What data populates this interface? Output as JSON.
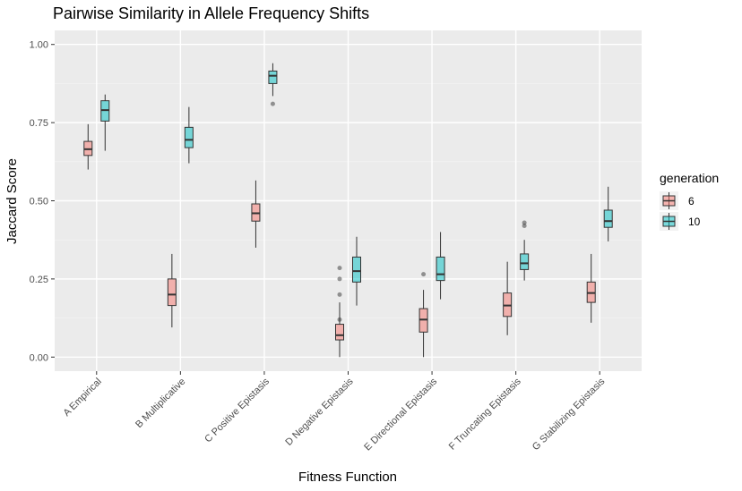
{
  "chart_data": {
    "type": "boxplot",
    "title": "Pairwise Similarity in Allele Frequency Shifts",
    "xlabel": "Fitness Function",
    "ylabel": "Jaccard Score",
    "ylim": [
      -0.045,
      1.045
    ],
    "yticks": [
      "0.00",
      "0.25",
      "0.50",
      "0.75",
      "1.00"
    ],
    "ytick_values": [
      0,
      0.25,
      0.5,
      0.75,
      1.0
    ],
    "grid": true,
    "legend_position": "right",
    "legend_title": "generation",
    "categories": [
      "A Empirical",
      "B Multiplicative",
      "C Positive Epistasis",
      "D Negative Epistasis",
      "E Directional Epistasis",
      "F Truncating Epistasis",
      "G Stabilizing Epistasis"
    ],
    "series": [
      {
        "name": "6",
        "color": "#F8766D",
        "boxes": [
          {
            "min": 0.6,
            "q1": 0.645,
            "median": 0.665,
            "q3": 0.69,
            "max": 0.745,
            "outliers": []
          },
          {
            "min": 0.095,
            "q1": 0.165,
            "median": 0.2,
            "q3": 0.25,
            "max": 0.33,
            "outliers": []
          },
          {
            "min": 0.35,
            "q1": 0.435,
            "median": 0.46,
            "q3": 0.49,
            "max": 0.565,
            "outliers": []
          },
          {
            "min": 0.0,
            "q1": 0.055,
            "median": 0.07,
            "q3": 0.105,
            "max": 0.175,
            "outliers": [
              0.2,
              0.25,
              0.285,
              0.12
            ]
          },
          {
            "min": 0.0,
            "q1": 0.08,
            "median": 0.12,
            "q3": 0.155,
            "max": 0.215,
            "outliers": [
              0.265
            ]
          },
          {
            "min": 0.07,
            "q1": 0.13,
            "median": 0.165,
            "q3": 0.205,
            "max": 0.305,
            "outliers": []
          },
          {
            "min": 0.11,
            "q1": 0.175,
            "median": 0.205,
            "q3": 0.24,
            "max": 0.33,
            "outliers": []
          }
        ]
      },
      {
        "name": "10",
        "color": "#00BFC4",
        "boxes": [
          {
            "min": 0.66,
            "q1": 0.755,
            "median": 0.79,
            "q3": 0.82,
            "max": 0.84,
            "outliers": []
          },
          {
            "min": 0.62,
            "q1": 0.67,
            "median": 0.695,
            "q3": 0.735,
            "max": 0.8,
            "outliers": []
          },
          {
            "min": 0.835,
            "q1": 0.875,
            "median": 0.9,
            "q3": 0.915,
            "max": 0.94,
            "outliers": [
              0.81
            ]
          },
          {
            "min": 0.165,
            "q1": 0.24,
            "median": 0.275,
            "q3": 0.32,
            "max": 0.385,
            "outliers": []
          },
          {
            "min": 0.185,
            "q1": 0.245,
            "median": 0.265,
            "q3": 0.32,
            "max": 0.4,
            "outliers": []
          },
          {
            "min": 0.245,
            "q1": 0.28,
            "median": 0.3,
            "q3": 0.33,
            "max": 0.375,
            "outliers": [
              0.42,
              0.43
            ]
          },
          {
            "min": 0.37,
            "q1": 0.415,
            "median": 0.435,
            "q3": 0.47,
            "max": 0.545,
            "outliers": []
          }
        ]
      }
    ]
  }
}
